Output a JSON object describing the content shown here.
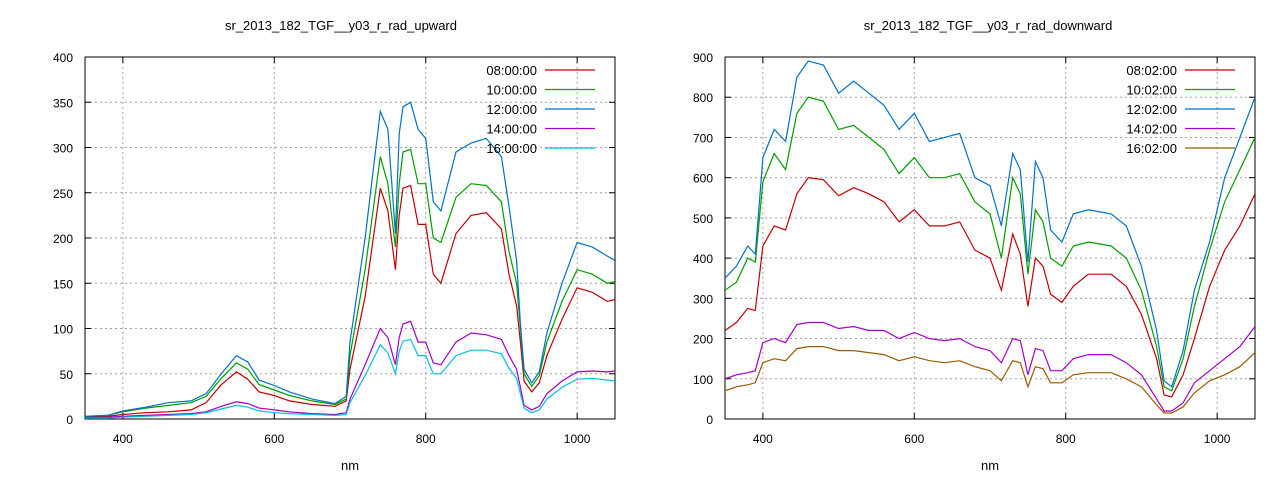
{
  "chart_data": [
    {
      "type": "line",
      "title": "sr_2013_182_TGF__y03_r_rad_upward",
      "xlabel": "nm",
      "ylabel": "",
      "xlim": [
        350,
        1050
      ],
      "ylim": [
        0,
        400
      ],
      "xticks": [
        400,
        600,
        800,
        1000
      ],
      "yticks": [
        0,
        50,
        100,
        150,
        200,
        250,
        300,
        350,
        400
      ],
      "grid": true,
      "legend_position": "top-right",
      "x": [
        350,
        380,
        400,
        430,
        460,
        490,
        510,
        530,
        550,
        565,
        580,
        600,
        620,
        650,
        680,
        695,
        700,
        720,
        740,
        750,
        760,
        765,
        770,
        780,
        790,
        800,
        810,
        820,
        840,
        860,
        880,
        900,
        910,
        920,
        925,
        930,
        940,
        950,
        960,
        980,
        1000,
        1020,
        1040,
        1050
      ],
      "series": [
        {
          "name": "08:00:00",
          "color": "#c00000",
          "values": [
            2,
            3,
            5,
            7,
            8,
            10,
            18,
            38,
            52,
            44,
            30,
            26,
            20,
            16,
            14,
            20,
            55,
            135,
            255,
            230,
            165,
            225,
            255,
            258,
            215,
            215,
            160,
            150,
            205,
            225,
            228,
            210,
            160,
            125,
            85,
            42,
            30,
            40,
            70,
            110,
            145,
            140,
            130,
            132
          ]
        },
        {
          "name": "10:00:00",
          "color": "#009e00",
          "values": [
            3,
            4,
            8,
            12,
            15,
            18,
            25,
            45,
            62,
            55,
            38,
            32,
            26,
            20,
            16,
            22,
            70,
            165,
            290,
            260,
            190,
            260,
            295,
            298,
            260,
            260,
            200,
            195,
            245,
            260,
            258,
            240,
            185,
            150,
            100,
            50,
            36,
            48,
            85,
            130,
            165,
            160,
            150,
            152
          ]
        },
        {
          "name": "12:00:00",
          "color": "#0072c6",
          "values": [
            3,
            4,
            9,
            13,
            18,
            20,
            28,
            50,
            70,
            63,
            43,
            37,
            30,
            22,
            17,
            25,
            85,
            200,
            340,
            320,
            205,
            315,
            345,
            350,
            320,
            310,
            240,
            230,
            295,
            305,
            310,
            290,
            235,
            175,
            105,
            55,
            40,
            52,
            95,
            150,
            195,
            190,
            180,
            175
          ]
        },
        {
          "name": "14:00:00",
          "color": "#a000c8",
          "values": [
            1,
            2,
            3,
            4,
            5,
            6,
            8,
            14,
            19,
            17,
            12,
            10,
            8,
            6,
            5,
            7,
            22,
            60,
            100,
            90,
            60,
            90,
            105,
            108,
            85,
            85,
            62,
            60,
            85,
            95,
            93,
            88,
            70,
            55,
            35,
            15,
            10,
            14,
            28,
            42,
            52,
            53,
            52,
            53
          ]
        },
        {
          "name": "16:00:00",
          "color": "#00c0e0",
          "values": [
            1,
            1,
            2,
            3,
            4,
            5,
            7,
            11,
            15,
            13,
            9,
            7,
            6,
            5,
            4,
            5,
            18,
            48,
            82,
            73,
            50,
            75,
            86,
            88,
            70,
            70,
            50,
            50,
            70,
            76,
            76,
            72,
            56,
            45,
            28,
            12,
            7,
            10,
            22,
            35,
            44,
            45,
            43,
            42
          ]
        }
      ]
    },
    {
      "type": "line",
      "title": "sr_2013_182_TGF__y03_r_rad_downward",
      "xlabel": "nm",
      "ylabel": "",
      "xlim": [
        350,
        1050
      ],
      "ylim": [
        0,
        900
      ],
      "xticks": [
        400,
        600,
        800,
        1000
      ],
      "yticks": [
        0,
        100,
        200,
        300,
        400,
        500,
        600,
        700,
        800,
        900
      ],
      "grid": true,
      "legend_position": "top-right",
      "x": [
        350,
        365,
        380,
        390,
        400,
        415,
        430,
        445,
        460,
        480,
        500,
        520,
        540,
        560,
        580,
        600,
        620,
        640,
        660,
        680,
        700,
        715,
        730,
        740,
        750,
        760,
        770,
        780,
        795,
        810,
        830,
        860,
        880,
        900,
        920,
        930,
        940,
        955,
        970,
        990,
        1010,
        1030,
        1050
      ],
      "series": [
        {
          "name": "08:02:00",
          "color": "#c00000",
          "values": [
            220,
            240,
            275,
            270,
            430,
            480,
            470,
            560,
            600,
            595,
            555,
            575,
            560,
            540,
            490,
            520,
            480,
            480,
            490,
            420,
            400,
            320,
            460,
            410,
            280,
            400,
            380,
            310,
            290,
            330,
            360,
            360,
            330,
            260,
            150,
            60,
            55,
            110,
            200,
            330,
            420,
            480,
            560
          ]
        },
        {
          "name": "10:02:00",
          "color": "#009e00",
          "values": [
            320,
            340,
            400,
            390,
            590,
            660,
            620,
            760,
            800,
            790,
            720,
            730,
            700,
            670,
            610,
            650,
            600,
            600,
            610,
            540,
            510,
            400,
            600,
            560,
            360,
            520,
            490,
            400,
            380,
            430,
            440,
            430,
            400,
            320,
            180,
            80,
            70,
            150,
            280,
            420,
            540,
            620,
            700
          ]
        },
        {
          "name": "12:02:00",
          "color": "#0072c6",
          "values": [
            350,
            380,
            430,
            410,
            650,
            720,
            690,
            850,
            890,
            880,
            810,
            840,
            810,
            780,
            720,
            760,
            690,
            700,
            710,
            600,
            580,
            480,
            660,
            620,
            390,
            640,
            600,
            470,
            440,
            510,
            520,
            510,
            480,
            380,
            220,
            95,
            80,
            170,
            320,
            440,
            600,
            700,
            800
          ]
        },
        {
          "name": "14:02:00",
          "color": "#a000c8",
          "values": [
            100,
            110,
            115,
            120,
            190,
            200,
            190,
            235,
            240,
            240,
            225,
            230,
            220,
            220,
            200,
            215,
            200,
            195,
            200,
            180,
            170,
            140,
            200,
            195,
            110,
            175,
            170,
            120,
            120,
            150,
            160,
            160,
            140,
            110,
            50,
            20,
            20,
            40,
            90,
            120,
            150,
            180,
            230
          ]
        },
        {
          "name": "16:02:00",
          "color": "#9a5a00",
          "values": [
            70,
            80,
            85,
            90,
            140,
            150,
            145,
            175,
            180,
            180,
            170,
            170,
            165,
            160,
            145,
            155,
            145,
            140,
            145,
            130,
            120,
            95,
            145,
            140,
            80,
            130,
            125,
            90,
            90,
            110,
            115,
            115,
            100,
            80,
            35,
            15,
            15,
            30,
            65,
            95,
            110,
            130,
            165
          ]
        }
      ]
    }
  ]
}
